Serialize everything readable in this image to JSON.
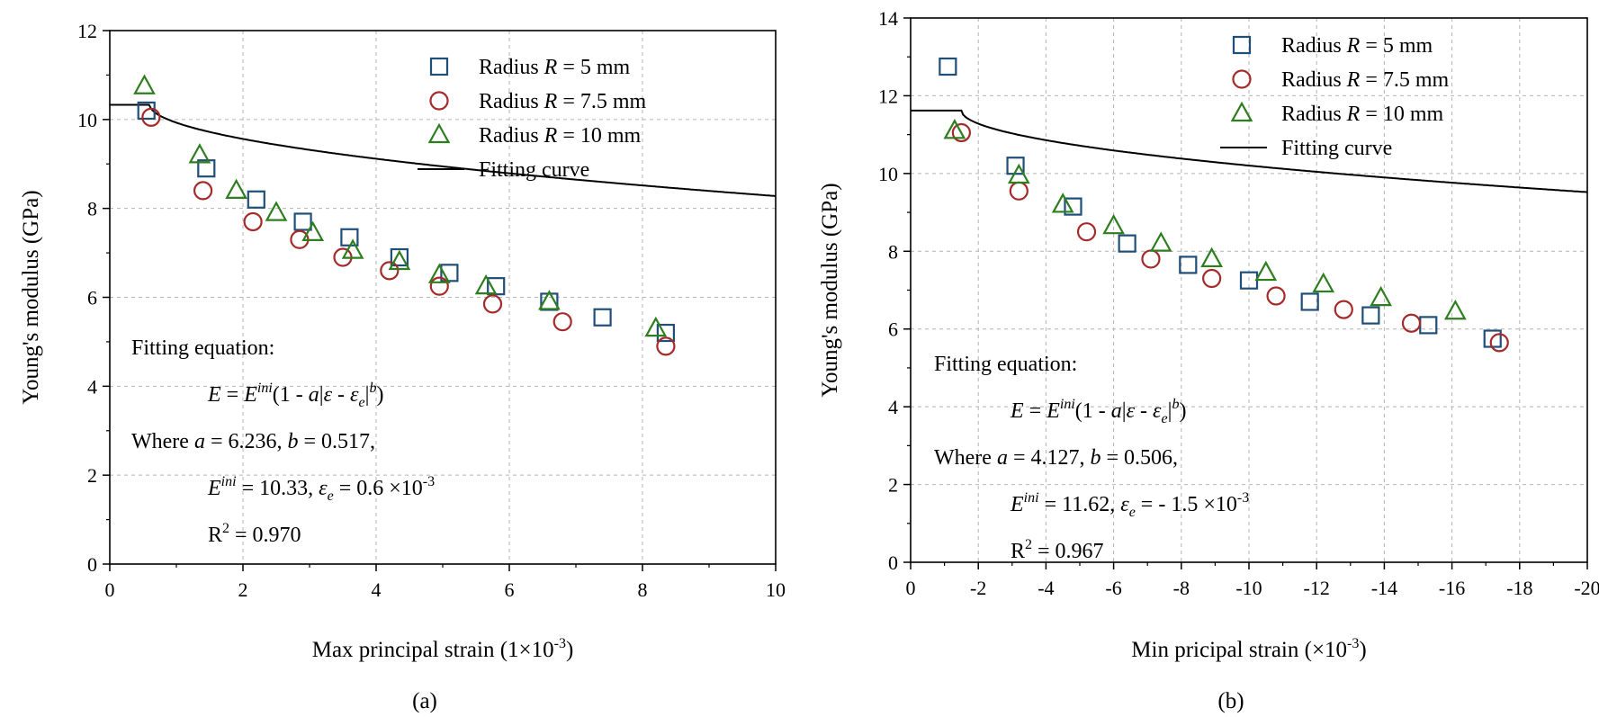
{
  "chart_data": [
    {
      "type": "scatter",
      "caption": "(a)",
      "xlabel": "Max principal strain (1×10",
      "xlabel_sup": "-3",
      "xlabel_end": ")",
      "ylabel": "Young's modulus (GPa)",
      "xlim": [
        0,
        10
      ],
      "ylim": [
        0,
        12
      ],
      "xticks": [
        "0",
        "2",
        "4",
        "6",
        "8",
        "10"
      ],
      "yticks": [
        "0",
        "2",
        "4",
        "6",
        "8",
        "10",
        "12"
      ],
      "grid": true,
      "legend_position": "top-right",
      "series": [
        {
          "name_prefix": "Radius ",
          "name_var": "R",
          "name_suffix": " = 5 mm",
          "marker": "square",
          "color": "#1f4e79",
          "x": [
            0.55,
            1.45,
            2.2,
            2.9,
            3.6,
            4.35,
            5.1,
            5.8,
            6.6,
            7.4,
            8.35
          ],
          "y": [
            10.2,
            8.9,
            8.2,
            7.7,
            7.35,
            6.9,
            6.55,
            6.25,
            5.9,
            5.55,
            5.2
          ]
        },
        {
          "name_prefix": "Radius ",
          "name_var": "R",
          "name_suffix": " = 7.5 mm",
          "marker": "circle",
          "color": "#a52a2a",
          "x": [
            0.62,
            1.4,
            2.15,
            2.85,
            3.5,
            4.2,
            4.95,
            5.75,
            6.8,
            8.35
          ],
          "y": [
            10.05,
            8.4,
            7.7,
            7.3,
            6.9,
            6.6,
            6.25,
            5.85,
            5.45,
            4.9
          ]
        },
        {
          "name_prefix": "Radius ",
          "name_var": "R",
          "name_suffix": " = 10 mm",
          "marker": "triangle",
          "color": "#2e7d1f",
          "x": [
            0.52,
            1.35,
            1.9,
            2.5,
            3.05,
            3.65,
            4.35,
            4.95,
            5.65,
            6.6,
            8.2
          ],
          "y": [
            10.75,
            9.2,
            8.4,
            7.9,
            7.45,
            7.05,
            6.8,
            6.5,
            6.25,
            5.9,
            5.3
          ]
        },
        {
          "name": "Fitting curve",
          "marker": "line",
          "color": "#000000",
          "E_ini": 10.33,
          "a": 6.236,
          "b": 0.517,
          "eps_e": 0.6,
          "x_start": -0.2,
          "x_end": 10
        }
      ],
      "annotation": {
        "line1": "Fitting equation:",
        "eq_E": "E",
        "eq_eq": " = ",
        "eq_E2": "E",
        "eq_ini": "ini",
        "eq_open": "(1 - ",
        "eq_a": "a",
        "eq_bar1": "|",
        "eq_eps": "ε",
        "eq_minus": " - ",
        "eq_eps2": "ε",
        "eq_e_sub": "e",
        "eq_bar2": "|",
        "eq_b": "b",
        "eq_close": ")",
        "where_prefix": "Where ",
        "where_a": "a",
        "where_a_val": " = 6.236, ",
        "where_b": "b",
        "where_b_val": " = 0.517,",
        "ini_E": "E",
        "ini_sup": "ini",
        "ini_val": " = 10.33, ",
        "ini_eps": "ε",
        "ini_eps_sub": "e",
        "ini_eps_val": " = 0.6 ×10",
        "ini_exp": "-3",
        "r2_R": "R",
        "r2_sup": "2",
        "r2_val": " = 0.970"
      }
    },
    {
      "type": "scatter",
      "caption": "(b)",
      "xlabel": "Min pricipal strain (×10",
      "xlabel_sup": "-3",
      "xlabel_end": ")",
      "ylabel": "Young's modulus (GPa)",
      "xlim": [
        0,
        -20
      ],
      "ylim": [
        0,
        14
      ],
      "xticks": [
        "0",
        "-2",
        "-4",
        "-6",
        "-8",
        "-10",
        "-12",
        "-14",
        "-16",
        "-18",
        "-20"
      ],
      "yticks": [
        "0",
        "2",
        "4",
        "6",
        "8",
        "10",
        "12",
        "14"
      ],
      "grid": true,
      "legend_position": "top-right",
      "series": [
        {
          "name_prefix": "Radius ",
          "name_var": "R",
          "name_suffix": " = 5 mm",
          "marker": "square",
          "color": "#1f4e79",
          "x": [
            -1.1,
            -3.1,
            -4.8,
            -6.4,
            -8.2,
            -10.0,
            -11.8,
            -13.6,
            -15.3,
            -17.2
          ],
          "y": [
            12.75,
            10.2,
            9.15,
            8.2,
            7.65,
            7.25,
            6.7,
            6.35,
            6.1,
            5.75
          ]
        },
        {
          "name_prefix": "Radius ",
          "name_var": "R",
          "name_suffix": " = 7.5 mm",
          "marker": "circle",
          "color": "#a52a2a",
          "x": [
            -1.5,
            -3.2,
            -5.2,
            -7.1,
            -8.9,
            -10.8,
            -12.8,
            -14.8,
            -17.4
          ],
          "y": [
            11.05,
            9.55,
            8.5,
            7.8,
            7.3,
            6.85,
            6.5,
            6.15,
            5.65
          ]
        },
        {
          "name_prefix": "Radius ",
          "name_var": "R",
          "name_suffix": " = 10 mm",
          "marker": "triangle",
          "color": "#2e7d1f",
          "x": [
            -1.3,
            -3.2,
            -4.5,
            -6.0,
            -7.4,
            -8.9,
            -10.5,
            -12.2,
            -13.9,
            -16.1
          ],
          "y": [
            11.1,
            9.95,
            9.2,
            8.65,
            8.2,
            7.8,
            7.45,
            7.15,
            6.8,
            6.45
          ]
        },
        {
          "name": "Fitting curve",
          "marker": "line",
          "color": "#000000",
          "E_ini": 11.62,
          "a": 4.127,
          "b": 0.506,
          "eps_e": -1.5,
          "x_start": 0,
          "x_end": -20
        }
      ],
      "annotation": {
        "line1": "Fitting equation:",
        "eq_E": "E",
        "eq_eq": " = ",
        "eq_E2": "E",
        "eq_ini": "ini",
        "eq_open": "(1 - ",
        "eq_a": "a",
        "eq_bar1": "|",
        "eq_eps": "ε",
        "eq_minus": " - ",
        "eq_eps2": "ε",
        "eq_e_sub": "e",
        "eq_bar2": "|",
        "eq_b": "b",
        "eq_close": ")",
        "where_prefix": "Where ",
        "where_a": "a",
        "where_a_val": " = 4.127, ",
        "where_b": "b",
        "where_b_val": " = 0.506,",
        "ini_E": "E",
        "ini_sup": "ini",
        "ini_val": " = 11.62, ",
        "ini_eps": "ε",
        "ini_eps_sub": "e",
        "ini_eps_val": " = - 1.5 ×10",
        "ini_exp": "-3",
        "r2_R": "R",
        "r2_sup": "2",
        "r2_val": " = 0.967"
      }
    }
  ]
}
